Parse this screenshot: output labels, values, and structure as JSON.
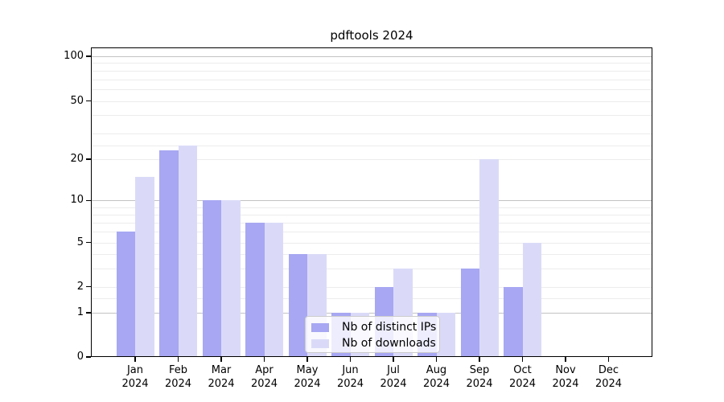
{
  "title": "pdftools 2024",
  "chart_data": {
    "type": "bar",
    "title": "pdftools 2024",
    "categories": [
      "Jan 2024",
      "Feb 2024",
      "Mar 2024",
      "Apr 2024",
      "May 2024",
      "Jun 2024",
      "Jul 2024",
      "Aug 2024",
      "Sep 2024",
      "Oct 2024",
      "Nov 2024",
      "Dec 2024"
    ],
    "series": [
      {
        "name": "Nb of distinct IPs",
        "color": "#a7a7f3",
        "values": [
          6,
          23,
          10,
          7,
          4,
          1,
          2,
          1,
          3,
          2,
          0,
          0
        ]
      },
      {
        "name": "Nb of downloads",
        "color": "#dadaf8",
        "values": [
          15,
          25,
          10,
          7,
          4,
          1,
          3,
          1,
          20,
          5,
          0,
          0
        ]
      }
    ],
    "xlabel": "",
    "ylabel": "",
    "ylim": [
      0,
      115
    ],
    "y_axis": {
      "scale": "log-like (position proportional to log10(value+1))",
      "ticks": [
        {
          "value": 100,
          "label": "100"
        },
        {
          "value": 50,
          "label": "50"
        },
        {
          "value": 20,
          "label": "20"
        },
        {
          "value": 10,
          "label": "10"
        },
        {
          "value": 5,
          "label": "5"
        },
        {
          "value": 2,
          "label": "2"
        },
        {
          "value": 1,
          "label": "1"
        },
        {
          "value": 0,
          "label": "0"
        }
      ],
      "major_gridlines": [
        1,
        10,
        100
      ],
      "minor_gridlines": [
        1.5,
        2,
        3,
        4,
        5,
        6,
        7,
        8,
        9,
        20,
        25,
        30,
        40,
        50,
        60,
        70,
        80,
        90
      ]
    },
    "grid": true,
    "legend_position": "lower center"
  },
  "colors": {
    "background": "#ffffff",
    "bar_distinct_ips": "#a7a7f3",
    "bar_downloads": "#dadaf8",
    "gridline_major": "#c3c3c3",
    "gridline_minor": "#ececec",
    "legend_border": "#cccccc",
    "text": "#000000"
  }
}
